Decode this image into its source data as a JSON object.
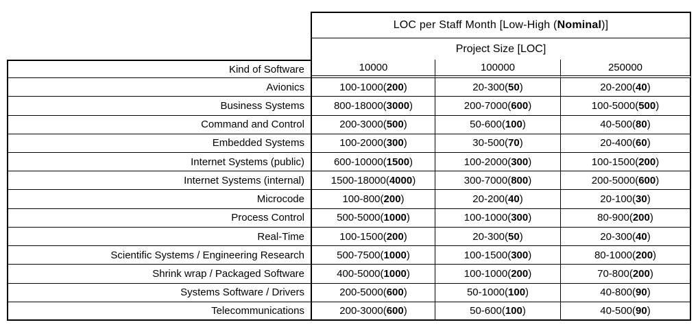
{
  "table": {
    "title": {
      "prefix": "LOC per Staff Month [Low-High (",
      "bold": "Nominal",
      "suffix": ")]"
    },
    "subtitle": "Project Size [LOC]",
    "row_header": "Kind of Software",
    "size_columns": [
      "10000",
      "100000",
      "250000"
    ],
    "format": {
      "open": "(",
      "close": ")"
    },
    "rows": [
      {
        "kind": "Avionics",
        "cells": [
          {
            "range": "100-1000",
            "nominal": "200"
          },
          {
            "range": "20-300",
            "nominal": "50"
          },
          {
            "range": "20-200",
            "nominal": "40"
          }
        ]
      },
      {
        "kind": "Business Systems",
        "cells": [
          {
            "range": "800-18000",
            "nominal": "3000"
          },
          {
            "range": "200-7000",
            "nominal": "600"
          },
          {
            "range": "100-5000",
            "nominal": "500"
          }
        ]
      },
      {
        "kind": "Command and Control",
        "cells": [
          {
            "range": "200-3000",
            "nominal": "500"
          },
          {
            "range": "50-600",
            "nominal": "100"
          },
          {
            "range": "40-500",
            "nominal": "80"
          }
        ]
      },
      {
        "kind": "Embedded Systems",
        "cells": [
          {
            "range": "100-2000",
            "nominal": "300"
          },
          {
            "range": "30-500",
            "nominal": "70"
          },
          {
            "range": "20-400",
            "nominal": "60"
          }
        ]
      },
      {
        "kind": "Internet Systems (public)",
        "cells": [
          {
            "range": "600-10000",
            "nominal": "1500"
          },
          {
            "range": "100-2000",
            "nominal": "300"
          },
          {
            "range": "100-1500",
            "nominal": "200"
          }
        ]
      },
      {
        "kind": "Internet Systems (internal)",
        "cells": [
          {
            "range": "1500-18000",
            "nominal": "4000"
          },
          {
            "range": "300-7000",
            "nominal": "800"
          },
          {
            "range": "200-5000",
            "nominal": "600"
          }
        ]
      },
      {
        "kind": "Microcode",
        "cells": [
          {
            "range": "100-800",
            "nominal": "200"
          },
          {
            "range": "20-200",
            "nominal": "40"
          },
          {
            "range": "20-100",
            "nominal": "30"
          }
        ]
      },
      {
        "kind": "Process Control",
        "cells": [
          {
            "range": "500-5000",
            "nominal": "1000"
          },
          {
            "range": "100-1000",
            "nominal": "300"
          },
          {
            "range": "80-900",
            "nominal": "200"
          }
        ]
      },
      {
        "kind": "Real-Time",
        "cells": [
          {
            "range": "100-1500",
            "nominal": "200"
          },
          {
            "range": "20-300",
            "nominal": "50"
          },
          {
            "range": "20-300",
            "nominal": "40"
          }
        ]
      },
      {
        "kind": "Scientific Systems / Engineering Research",
        "cells": [
          {
            "range": "500-7500",
            "nominal": "1000"
          },
          {
            "range": "100-1500",
            "nominal": "300"
          },
          {
            "range": "80-1000",
            "nominal": "200"
          }
        ]
      },
      {
        "kind": "Shrink wrap / Packaged Software",
        "cells": [
          {
            "range": "400-5000",
            "nominal": "1000"
          },
          {
            "range": "100-1000",
            "nominal": "200"
          },
          {
            "range": "70-800",
            "nominal": "200"
          }
        ]
      },
      {
        "kind": "Systems Software / Drivers",
        "cells": [
          {
            "range": "200-5000",
            "nominal": "600"
          },
          {
            "range": "50-1000",
            "nominal": "100"
          },
          {
            "range": "40-800",
            "nominal": "90"
          }
        ]
      },
      {
        "kind": "Telecommunications",
        "cells": [
          {
            "range": "200-3000",
            "nominal": "600"
          },
          {
            "range": "50-600",
            "nominal": "100"
          },
          {
            "range": "40-500",
            "nominal": "90"
          }
        ]
      }
    ],
    "colors": {
      "border": "#000000",
      "text": "#000000",
      "background": "#ffffff"
    }
  }
}
